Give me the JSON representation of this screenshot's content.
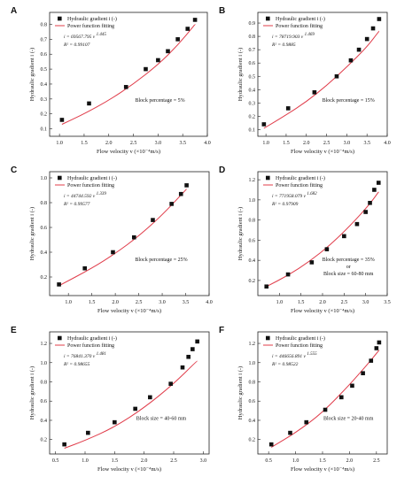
{
  "series_names": {
    "data": "Hydraulic gradient  i (-)",
    "fit": "Power function fitting"
  },
  "colors": {
    "points": "#111111",
    "fit": "#e03c4a",
    "frame": "#222222"
  },
  "chart_data": [
    {
      "type": "scatter",
      "panel": "A",
      "xlabel": "Flow velocity  v (×10⁻⁴m/s)",
      "ylabel": "Hydraulic gradient  i (-)",
      "xlim": [
        0.8,
        4.0
      ],
      "ylim": [
        0.05,
        0.88
      ],
      "xticks": [
        1.0,
        1.5,
        2.0,
        2.5,
        3.0,
        3.5,
        4.0
      ],
      "xtick_labels": [
        "1.0",
        "1.5",
        "2.0",
        "2.5",
        "3.0",
        "3.5",
        "4.0"
      ],
      "yticks": [
        0.1,
        0.2,
        0.3,
        0.4,
        0.5,
        0.6,
        0.7,
        0.8
      ],
      "ytick_labels": [
        "0.1",
        "0.2",
        "0.3",
        "0.4",
        "0.5",
        "0.6",
        "0.7",
        "0.8"
      ],
      "x": [
        1.05,
        1.6,
        2.35,
        2.75,
        3.0,
        3.2,
        3.4,
        3.6,
        3.75
      ],
      "y": [
        0.16,
        0.27,
        0.38,
        0.5,
        0.56,
        0.62,
        0.7,
        0.77,
        0.83
      ],
      "fit_points": [
        [
          1.05,
          0.13
        ],
        [
          1.5,
          0.2
        ],
        [
          2.0,
          0.29
        ],
        [
          2.5,
          0.4
        ],
        [
          3.0,
          0.53
        ],
        [
          3.4,
          0.66
        ],
        [
          3.75,
          0.8
        ]
      ],
      "annotation": "Block percentage = 5%",
      "equation": "i = 69567.795 v ^1.445",
      "r2": "R² = 0.99107"
    },
    {
      "type": "scatter",
      "panel": "B",
      "xlabel": "Flow velocity  v (×10⁻⁴m/s)",
      "ylabel": "Hydraulic gradient  i (-)",
      "xlim": [
        0.8,
        4.0
      ],
      "ylim": [
        0.05,
        0.98
      ],
      "xticks": [
        1.0,
        1.5,
        2.0,
        2.5,
        3.0,
        3.5,
        4.0
      ],
      "xtick_labels": [
        "1.0",
        "1.5",
        "2.0",
        "2.5",
        "3.0",
        "3.5",
        "4.0"
      ],
      "yticks": [
        0.1,
        0.2,
        0.3,
        0.4,
        0.5,
        0.6,
        0.7,
        0.8,
        0.9
      ],
      "ytick_labels": [
        "0.1",
        "0.2",
        "0.3",
        "0.4",
        "0.5",
        "0.6",
        "0.7",
        "0.8",
        "0.9"
      ],
      "x": [
        0.95,
        1.55,
        2.2,
        2.75,
        3.1,
        3.3,
        3.5,
        3.65,
        3.8
      ],
      "y": [
        0.14,
        0.26,
        0.38,
        0.5,
        0.62,
        0.7,
        0.78,
        0.86,
        0.93
      ],
      "fit_points": [
        [
          0.95,
          0.11
        ],
        [
          1.5,
          0.21
        ],
        [
          2.0,
          0.31
        ],
        [
          2.5,
          0.43
        ],
        [
          3.0,
          0.57
        ],
        [
          3.5,
          0.72
        ],
        [
          3.8,
          0.84
        ]
      ],
      "annotation": "Block percentage = 15%",
      "equation": "i = 78719.903 v ^1.469",
      "r2": "R² = 0.9885"
    },
    {
      "type": "scatter",
      "panel": "C",
      "xlabel": "Flow velocity  v (×10⁻⁴m/s)",
      "ylabel": "Hydraulic gradient  i (-)",
      "xlim": [
        0.6,
        4.0
      ],
      "ylim": [
        0.05,
        1.05
      ],
      "xticks": [
        1.0,
        1.5,
        2.0,
        2.5,
        3.0,
        3.5,
        4.0
      ],
      "xtick_labels": [
        "1.0",
        "1.5",
        "2.0",
        "2.5",
        "3.0",
        "3.5",
        "4.0"
      ],
      "yticks": [
        0.2,
        0.4,
        0.6,
        0.8,
        1.0
      ],
      "ytick_labels": [
        "0.2",
        "0.4",
        "0.6",
        "0.8",
        "1.0"
      ],
      "x": [
        0.8,
        1.35,
        1.95,
        2.4,
        2.8,
        3.2,
        3.4,
        3.52
      ],
      "y": [
        0.14,
        0.27,
        0.4,
        0.52,
        0.66,
        0.79,
        0.87,
        0.94
      ],
      "fit_points": [
        [
          0.8,
          0.13
        ],
        [
          1.5,
          0.27
        ],
        [
          2.0,
          0.39
        ],
        [
          2.5,
          0.53
        ],
        [
          3.0,
          0.7
        ],
        [
          3.52,
          0.91
        ]
      ],
      "annotation": "Block percentage = 25%",
      "equation": "i = 44744.592 v ^1.339",
      "r2": "R² = 0.99577"
    },
    {
      "type": "scatter",
      "panel": "D",
      "xlabel": "Flow velocity  v (×10⁻⁴m/s)",
      "ylabel": "Hydraulic gradient  i (-)",
      "xlim": [
        0.5,
        3.5
      ],
      "ylim": [
        0.05,
        1.28
      ],
      "xticks": [
        1.0,
        1.5,
        2.0,
        2.5,
        3.0,
        3.5
      ],
      "xtick_labels": [
        "1.0",
        "1.5",
        "2.0",
        "2.5",
        "3.0",
        "3.5"
      ],
      "yticks": [
        0.2,
        0.4,
        0.6,
        0.8,
        1.0,
        1.2
      ],
      "ytick_labels": [
        "0.2",
        "0.4",
        "0.6",
        "0.8",
        "1.0",
        "1.2"
      ],
      "x": [
        0.7,
        1.2,
        1.75,
        2.1,
        2.5,
        2.8,
        3.0,
        3.1,
        3.2,
        3.3
      ],
      "y": [
        0.14,
        0.26,
        0.38,
        0.51,
        0.64,
        0.76,
        0.88,
        0.97,
        1.1,
        1.17
      ],
      "fit_points": [
        [
          0.7,
          0.14
        ],
        [
          1.2,
          0.25
        ],
        [
          1.7,
          0.39
        ],
        [
          2.2,
          0.56
        ],
        [
          2.7,
          0.77
        ],
        [
          3.1,
          0.96
        ],
        [
          3.3,
          1.08
        ]
      ],
      "annotation": "Block percentage = 35%",
      "annotation2": "or",
      "annotation3": "Block size = 60-80 mm",
      "equation": "i = 771958.079 v ^1.682",
      "r2": "R² = 0.97909"
    },
    {
      "type": "scatter",
      "panel": "E",
      "xlabel": "Flow velocity  v (×10⁻⁴m/s)",
      "ylabel": "Hydraulic gradient  i (-)",
      "xlim": [
        0.4,
        3.1
      ],
      "ylim": [
        0.05,
        1.32
      ],
      "xticks": [
        0.5,
        1.0,
        1.5,
        2.0,
        2.5,
        3.0
      ],
      "xtick_labels": [
        "0.5",
        "1.0",
        "1.5",
        "2.0",
        "2.5",
        "3.0"
      ],
      "yticks": [
        0.2,
        0.4,
        0.6,
        0.8,
        1.0,
        1.2
      ],
      "ytick_labels": [
        "0.2",
        "0.4",
        "0.6",
        "0.8",
        "1.0",
        "1.2"
      ],
      "x": [
        0.65,
        1.05,
        1.5,
        1.85,
        2.1,
        2.45,
        2.65,
        2.75,
        2.82,
        2.9
      ],
      "y": [
        0.15,
        0.27,
        0.38,
        0.52,
        0.64,
        0.78,
        0.95,
        1.06,
        1.14,
        1.22
      ],
      "fit_points": [
        [
          0.65,
          0.11
        ],
        [
          1.0,
          0.19
        ],
        [
          1.5,
          0.33
        ],
        [
          2.0,
          0.53
        ],
        [
          2.5,
          0.78
        ],
        [
          2.9,
          1.02
        ]
      ],
      "annotation": "Block size = 40-60 mm",
      "equation": "i = 76841.370 v ^1.481",
      "r2": "R² = 0.98655"
    },
    {
      "type": "scatter",
      "panel": "F",
      "xlabel": "Flow velocity  v (×10⁻⁴m/s)",
      "ylabel": "Hydraulic gradient  i (-)",
      "xlim": [
        0.3,
        2.7
      ],
      "ylim": [
        0.05,
        1.32
      ],
      "xticks": [
        0.5,
        1.0,
        1.5,
        2.0,
        2.5
      ],
      "xtick_labels": [
        "0.5",
        "1.0",
        "1.5",
        "2.0",
        "2.5"
      ],
      "yticks": [
        0.2,
        0.4,
        0.6,
        0.8,
        1.0,
        1.2
      ],
      "ytick_labels": [
        "0.2",
        "0.4",
        "0.6",
        "0.8",
        "1.0",
        "1.2"
      ],
      "x": [
        0.55,
        0.9,
        1.2,
        1.55,
        1.85,
        2.05,
        2.25,
        2.4,
        2.5,
        2.55
      ],
      "y": [
        0.15,
        0.27,
        0.38,
        0.51,
        0.64,
        0.76,
        0.89,
        1.02,
        1.15,
        1.21
      ],
      "fit_points": [
        [
          0.55,
          0.12
        ],
        [
          1.0,
          0.27
        ],
        [
          1.5,
          0.48
        ],
        [
          2.0,
          0.77
        ],
        [
          2.3,
          0.96
        ],
        [
          2.55,
          1.13
        ]
      ],
      "annotation": "Block size = 20-40 mm",
      "equation": "i = 446656.891 v ^1.555",
      "r2": "R² = 0.98522"
    }
  ]
}
